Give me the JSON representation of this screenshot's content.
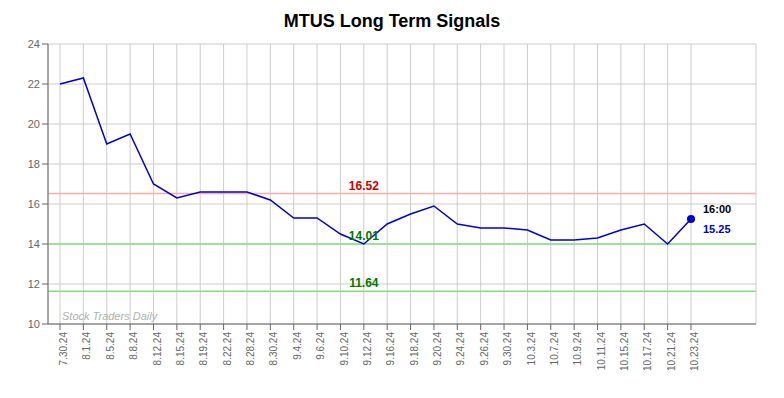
{
  "chart_data": {
    "type": "line",
    "title": "MTUS Long Term Signals",
    "categories": [
      "7.30.24",
      "8.1.24",
      "8.5.24",
      "8.8.24",
      "8.12.24",
      "8.15.24",
      "8.19.24",
      "8.22.24",
      "8.28.24",
      "8.30.24",
      "9.4.24",
      "9.6.24",
      "9.10.24",
      "9.12.24",
      "9.16.24",
      "9.18.24",
      "9.20.24",
      "9.24.24",
      "9.26.24",
      "9.30.24",
      "10.3.24",
      "10.7.24",
      "10.9.24",
      "10.11.24",
      "10.15.24",
      "10.17.24",
      "10.21.24",
      "10.23.24"
    ],
    "series": [
      {
        "color": "#0000cc",
        "values": [
          22.0,
          22.3,
          19.0,
          19.5,
          17.0,
          16.3,
          16.6,
          16.6,
          16.6,
          16.2,
          15.3,
          15.3,
          14.5,
          14.0,
          15.0,
          15.5,
          15.9,
          15.0,
          14.8,
          14.8,
          14.7,
          14.2,
          14.2,
          14.3,
          14.7,
          15.0,
          14.0,
          15.25
        ]
      }
    ],
    "ylim": [
      10,
      24
    ],
    "yticks": [
      10,
      12,
      14,
      16,
      18,
      20,
      22,
      24
    ],
    "grid": true,
    "hlines": [
      {
        "y": 16.52,
        "color": "#ffaaaa"
      },
      {
        "y": 14.0,
        "color": "#88dd88"
      },
      {
        "y": 11.64,
        "color": "#88dd88"
      }
    ],
    "annotations": [
      {
        "text": "16.52",
        "x": "9.12.24",
        "y": 16.52,
        "color": "#cc0000",
        "position": "top"
      },
      {
        "text": "14.01",
        "x": "9.12.24",
        "y": 14.0,
        "color": "#007700",
        "position": "top"
      },
      {
        "text": "11.64",
        "x": "9.12.24",
        "y": 11.64,
        "color": "#007700",
        "position": "top"
      },
      {
        "x": "10.23.24",
        "y": 15.25,
        "marker": "circle",
        "color": "#0000cc"
      },
      {
        "text": "16:00",
        "x": "10.23.24",
        "y": 15.25,
        "color": "#000000",
        "position": "right_above"
      },
      {
        "text": "15.25",
        "x": "10.23.24",
        "y": 15.25,
        "color": "#0000cc",
        "position": "right_below"
      },
      {
        "text": "Stock Traders Daily",
        "x": "7.30.24",
        "y": 10,
        "color": "#b0b0b0",
        "position": "top_right",
        "style": "italic"
      }
    ]
  }
}
